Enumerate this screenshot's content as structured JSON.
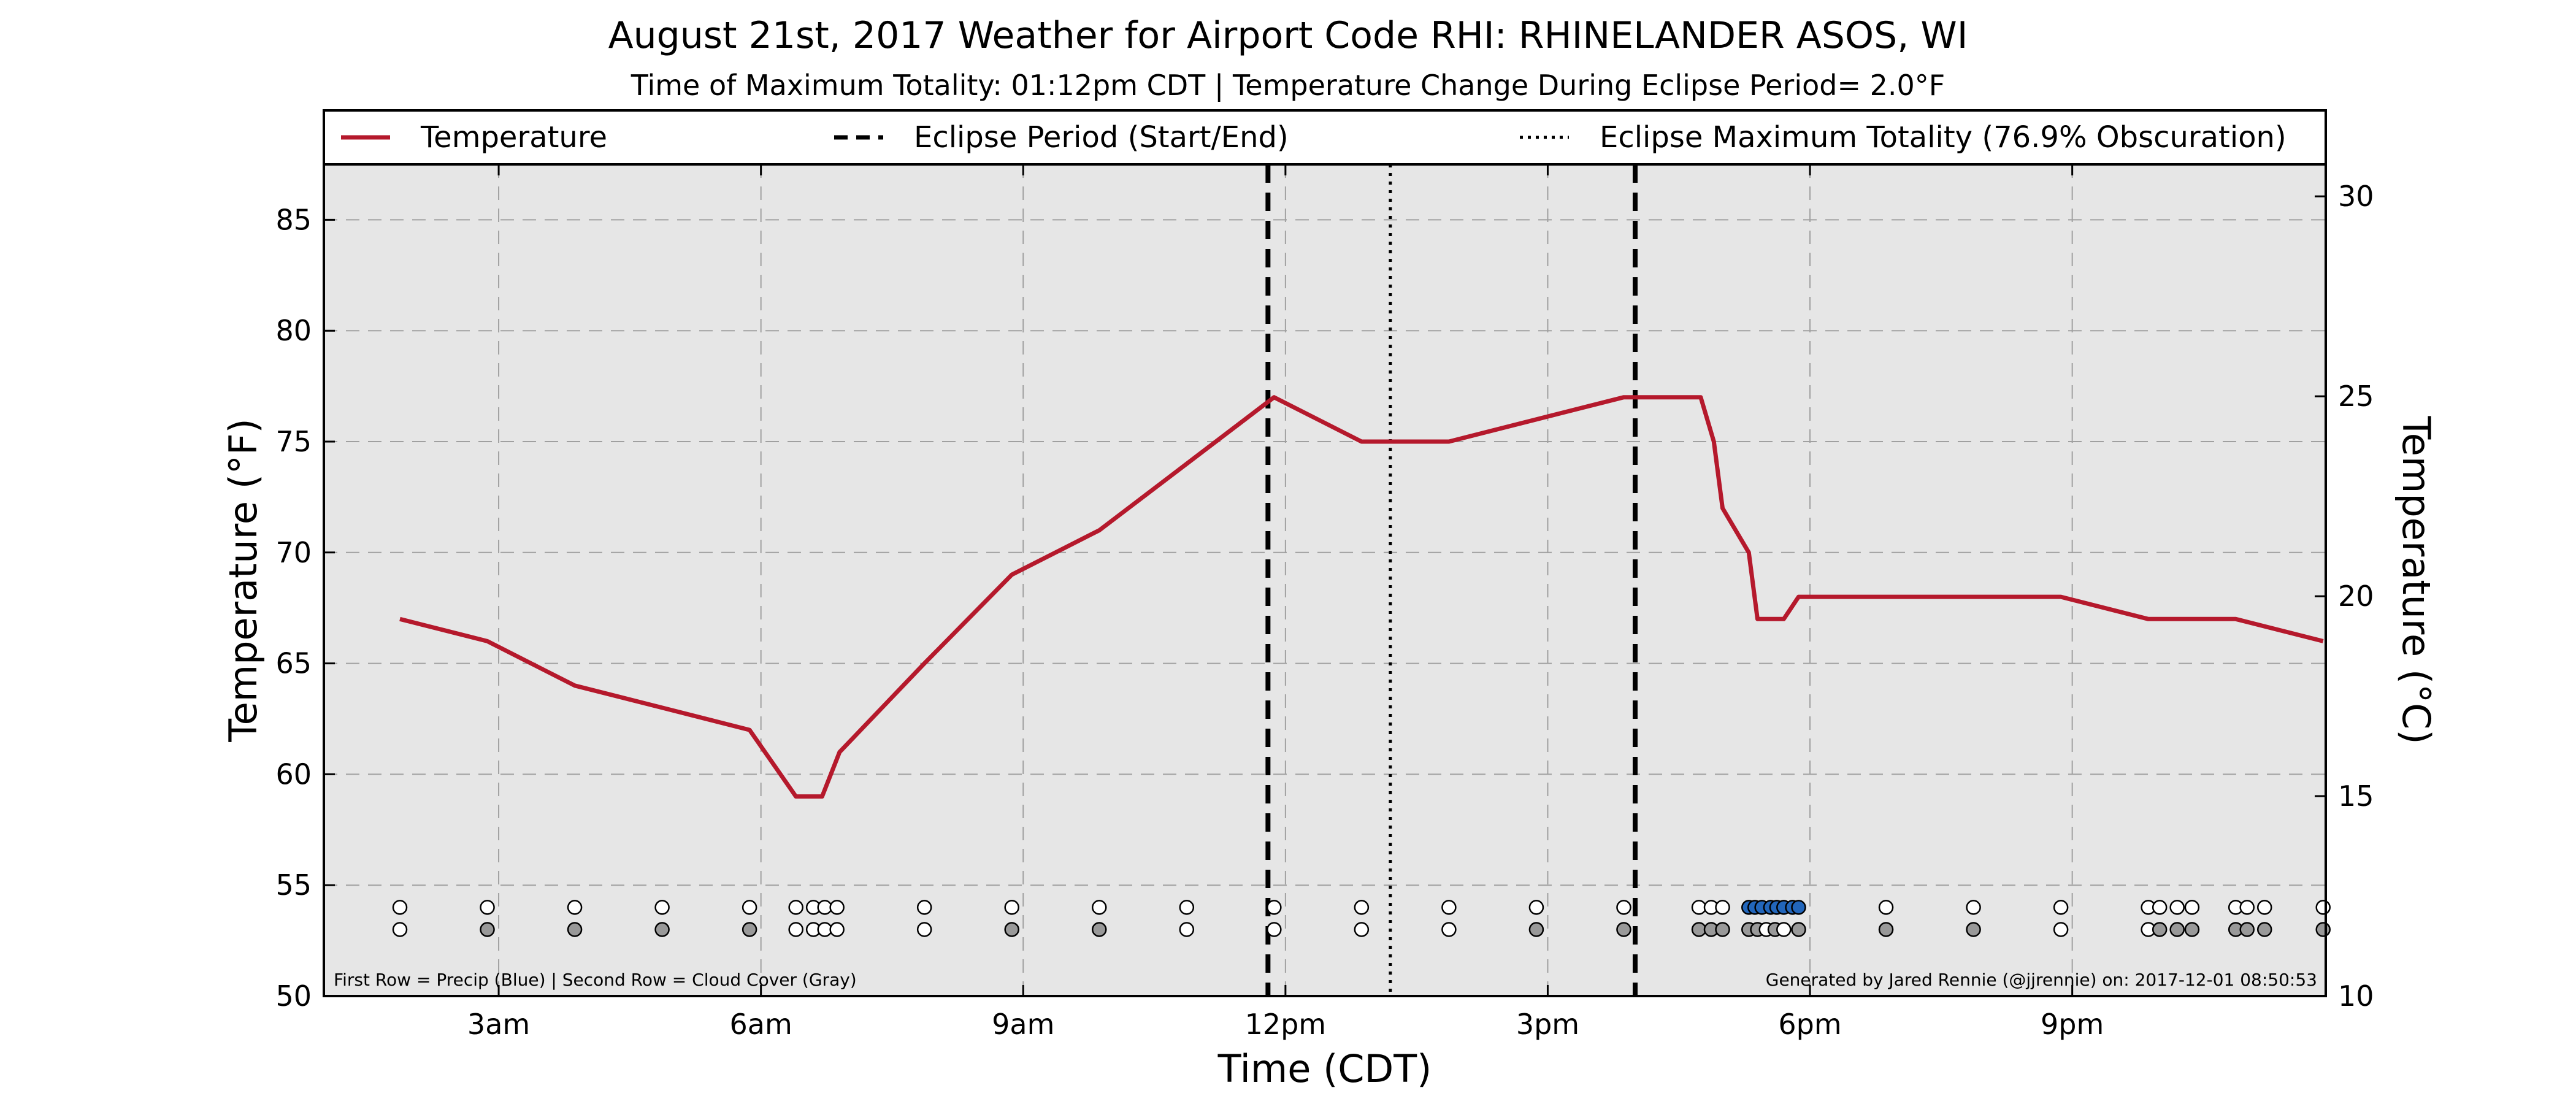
{
  "chart_data": {
    "type": "line",
    "title": "August 21st, 2017 Weather for Airport Code RHI: RHINELANDER ASOS, WI",
    "subtitle": "Time of Maximum Totality: 01:12pm CDT | Temperature Change During Eclipse Period= 2.0°F",
    "xlabel": "Time (CDT)",
    "ylabel": "Temperature (°F)",
    "ylabel_right": "Temperature (°C)",
    "x_unit": "hours after midnight CDT",
    "xlim": [
      1.0,
      23.9
    ],
    "ylim": [
      50,
      87.5
    ],
    "ylim_right": [
      10,
      30.8
    ],
    "grid": true,
    "x_ticks": [
      {
        "value": 3,
        "label": "3am"
      },
      {
        "value": 6,
        "label": "6am"
      },
      {
        "value": 9,
        "label": "9am"
      },
      {
        "value": 12,
        "label": "12pm"
      },
      {
        "value": 15,
        "label": "3pm"
      },
      {
        "value": 18,
        "label": "6pm"
      },
      {
        "value": 21,
        "label": "9pm"
      }
    ],
    "y_ticks": [
      50,
      55,
      60,
      65,
      70,
      75,
      80,
      85
    ],
    "y_ticks_right": [
      10,
      15,
      20,
      25,
      30
    ],
    "legend": {
      "placement": "top",
      "entries": [
        {
          "label": "Temperature",
          "style": "solid"
        },
        {
          "label": "Eclipse Period (Start/End)",
          "style": "dashed"
        },
        {
          "label": "Eclipse Maximum Totality (76.9% Obscuration)",
          "style": "dotted"
        }
      ]
    },
    "series": [
      {
        "name": "Temperature",
        "color": "#b5192c",
        "x": [
          1.87,
          2.87,
          3.87,
          4.87,
          5.87,
          6.4,
          6.7,
          6.9,
          7.87,
          8.87,
          9.87,
          10.87,
          11.87,
          12.87,
          13.87,
          14.87,
          15.87,
          16.75,
          16.9,
          17.0,
          17.3,
          17.4,
          17.7,
          17.87,
          18.87,
          19.87,
          20.87,
          21.87,
          22.87,
          23.87
        ],
        "y": [
          67,
          66,
          64,
          63,
          62,
          59,
          59,
          61,
          65,
          69,
          71,
          74,
          77,
          75,
          75,
          76,
          77,
          77,
          75,
          72,
          70,
          67,
          67,
          68,
          68,
          68,
          68,
          67,
          67,
          66
        ]
      }
    ],
    "eclipse_start": 11.8,
    "eclipse_max": 13.2,
    "eclipse_end": 16.0,
    "precip_row": {
      "y": 54,
      "x": [
        1.87,
        2.87,
        3.87,
        4.87,
        5.87,
        6.4,
        6.6,
        6.73,
        6.87,
        7.87,
        8.87,
        9.87,
        10.87,
        11.87,
        12.87,
        13.87,
        14.87,
        15.87,
        16.73,
        16.87,
        17.0,
        17.3,
        17.37,
        17.45,
        17.55,
        17.62,
        17.7,
        17.8,
        17.87,
        18.87,
        19.87,
        20.87,
        21.87,
        22.0,
        22.2,
        22.37,
        22.87,
        23.0,
        23.2,
        23.87
      ],
      "state": [
        "dry",
        "dry",
        "dry",
        "dry",
        "dry",
        "dry",
        "dry",
        "dry",
        "dry",
        "dry",
        "dry",
        "dry",
        "dry",
        "dry",
        "dry",
        "dry",
        "dry",
        "dry",
        "dry",
        "dry",
        "dry",
        "precip",
        "precip",
        "precip",
        "precip",
        "precip",
        "precip",
        "precip",
        "precip",
        "dry",
        "dry",
        "dry",
        "dry",
        "dry",
        "dry",
        "dry",
        "dry",
        "dry",
        "dry",
        "dry"
      ]
    },
    "cloud_row": {
      "y": 53,
      "x": [
        1.87,
        2.87,
        3.87,
        4.87,
        5.87,
        6.4,
        6.6,
        6.73,
        6.87,
        7.87,
        8.87,
        9.87,
        10.87,
        11.87,
        12.87,
        13.87,
        14.87,
        15.87,
        16.73,
        16.87,
        17.0,
        17.3,
        17.4,
        17.5,
        17.6,
        17.7,
        17.87,
        18.87,
        19.87,
        20.87,
        21.87,
        22.0,
        22.2,
        22.37,
        22.87,
        23.0,
        23.2,
        23.87
      ],
      "state": [
        "clear",
        "cloudy",
        "cloudy",
        "cloudy",
        "cloudy",
        "clear",
        "clear",
        "clear",
        "clear",
        "clear",
        "cloudy",
        "cloudy",
        "clear",
        "clear",
        "clear",
        "clear",
        "cloudy",
        "cloudy",
        "cloudy",
        "cloudy",
        "cloudy",
        "cloudy",
        "cloudy",
        "clear",
        "cloudy",
        "clear",
        "cloudy",
        "cloudy",
        "cloudy",
        "clear",
        "clear",
        "cloudy",
        "cloudy",
        "cloudy",
        "cloudy",
        "cloudy",
        "cloudy",
        "cloudy"
      ]
    },
    "colors": {
      "temperature": "#b5192c",
      "plot_background": "#e6e6e6",
      "precip": "#2266bb",
      "cloud": "#999999",
      "empty": "#ffffff"
    },
    "notes": {
      "left": "First Row = Precip (Blue) | Second Row = Cloud Cover (Gray)",
      "right": "Generated by Jared Rennie (@jjrennie) on: 2017-12-01 08:50:53"
    }
  }
}
